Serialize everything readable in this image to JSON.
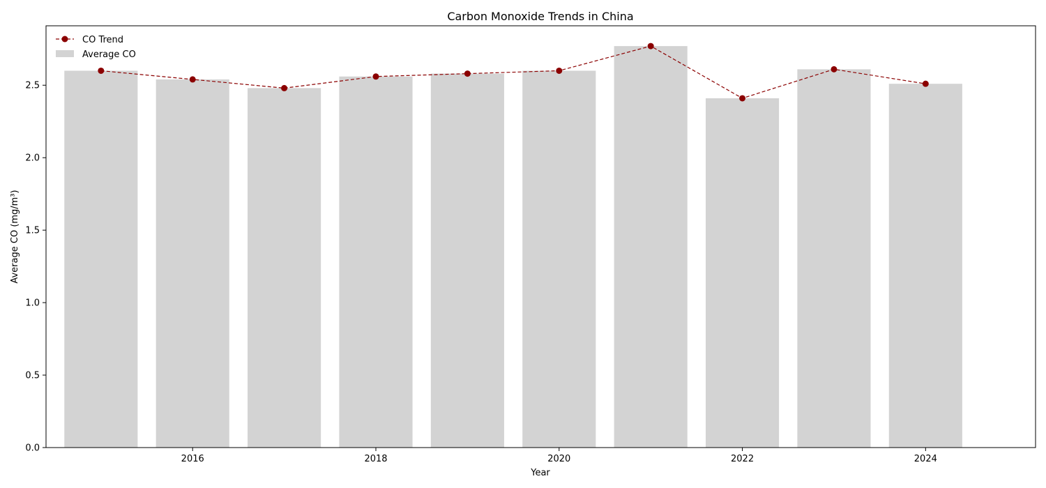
{
  "chart_data": {
    "type": "bar",
    "title": "Carbon Monoxide Trends in China",
    "xlabel": "Year",
    "ylabel": "Average CO (mg/m³)",
    "x": [
      2015,
      2016,
      2017,
      2018,
      2019,
      2020,
      2021,
      2022,
      2023,
      2024
    ],
    "series": [
      {
        "name": "Average CO",
        "type": "bar",
        "color": "#d3d3d3",
        "values": [
          2.6,
          2.54,
          2.48,
          2.56,
          2.58,
          2.6,
          2.77,
          2.41,
          2.61,
          2.51
        ]
      },
      {
        "name": "CO Trend",
        "type": "line",
        "style": "dashed",
        "marker": "circle",
        "color": "#8b0000",
        "values": [
          2.6,
          2.54,
          2.48,
          2.56,
          2.58,
          2.6,
          2.77,
          2.41,
          2.61,
          2.51
        ]
      }
    ],
    "xlim": [
      2014.4,
      2025.2
    ],
    "ylim": [
      0,
      2.91
    ],
    "xticks": [
      "2016",
      "2018",
      "2020",
      "2022",
      "2024"
    ],
    "yticks": [
      "0.0",
      "0.5",
      "1.0",
      "1.5",
      "2.0",
      "2.5"
    ],
    "grid": false,
    "legend_position": "top-left"
  }
}
